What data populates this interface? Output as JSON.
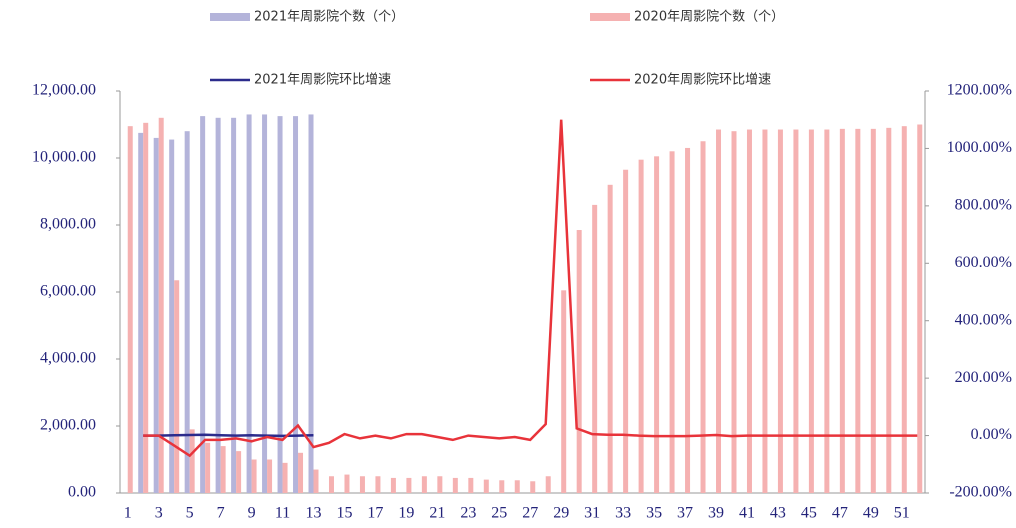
{
  "chart_data": {
    "type": "combo",
    "legend": "top",
    "categories": [
      "1",
      null,
      "3",
      null,
      "5",
      null,
      "7",
      null,
      "9",
      null,
      "11",
      null,
      "13",
      null,
      "15",
      null,
      "17",
      null,
      "19",
      null,
      "21",
      null,
      "23",
      null,
      "25",
      null,
      "27",
      null,
      "29",
      null,
      "31",
      null,
      "33",
      null,
      "35",
      null,
      "37",
      null,
      "39",
      null,
      "41",
      null,
      "43",
      null,
      "45",
      null,
      "47",
      null,
      "49",
      null,
      "51",
      null
    ],
    "ylim": [
      0,
      12000
    ],
    "yticks": [
      {
        "value": 0,
        "label": "0.00"
      },
      {
        "value": 2000,
        "label": "2,000.00"
      },
      {
        "value": 4000,
        "label": "4,000.00"
      },
      {
        "value": 6000,
        "label": "6,000.00"
      },
      {
        "value": 8000,
        "label": "8,000.00"
      },
      {
        "value": 10000,
        "label": "10,000.00"
      },
      {
        "value": 12000,
        "label": "12,000.00"
      }
    ],
    "y2lim": [
      -200,
      1200
    ],
    "y2ticks": [
      {
        "value": -200,
        "label": "-200.00%"
      },
      {
        "value": 0,
        "label": "0.00%"
      },
      {
        "value": 200,
        "label": "200.00%"
      },
      {
        "value": 400,
        "label": "400.00%"
      },
      {
        "value": 600,
        "label": "600.00%"
      },
      {
        "value": 800,
        "label": "800.00%"
      },
      {
        "value": 1000,
        "label": "1000.00%"
      },
      {
        "value": 1200,
        "label": "1200.00%"
      }
    ],
    "series": [
      {
        "name": "2021年周影院个数（个）",
        "type": "bar",
        "color": "#b4b4da",
        "values": [
          null,
          10750,
          10600,
          10550,
          10800,
          11250,
          11200,
          11200,
          11300,
          11300,
          11250,
          11250,
          11300,
          null,
          null,
          null,
          null,
          null,
          null,
          null,
          null,
          null,
          null,
          null,
          null,
          null,
          null,
          null,
          null,
          null,
          null,
          null,
          null,
          null,
          null,
          null,
          null,
          null,
          null,
          null,
          null,
          null,
          null,
          null,
          null,
          null,
          null,
          null,
          null,
          null,
          null,
          null
        ]
      },
      {
        "name": "2020年周影院个数（个）",
        "type": "bar",
        "color": "#f5b1b1",
        "values": [
          10950,
          11050,
          11200,
          6350,
          1900,
          1500,
          1400,
          1250,
          1000,
          1000,
          900,
          1200,
          700,
          500,
          550,
          500,
          500,
          450,
          450,
          500,
          500,
          450,
          450,
          400,
          380,
          380,
          350,
          500,
          6050,
          7850,
          8600,
          9200,
          9650,
          9950,
          10050,
          10200,
          10300,
          10500,
          10850,
          10800,
          10850,
          10850,
          10850,
          10850,
          10850,
          10850,
          10870,
          10870,
          10870,
          10900,
          10950,
          11000
        ]
      },
      {
        "name": "2021年周影院环比增速",
        "type": "line",
        "axis": "y2",
        "color": "#2b2b8c",
        "values": [
          null,
          0,
          0,
          1,
          2,
          3,
          1,
          0,
          1,
          0,
          -1,
          0,
          1,
          null,
          null,
          null,
          null,
          null,
          null,
          null,
          null,
          null,
          null,
          null,
          null,
          null,
          null,
          null,
          null,
          null,
          null,
          null,
          null,
          null,
          null,
          null,
          null,
          null,
          null,
          null,
          null,
          null,
          null,
          null,
          null,
          null,
          null,
          null,
          null,
          null,
          null,
          null
        ]
      },
      {
        "name": "2020年周影院环比增速",
        "type": "line",
        "axis": "y2",
        "color": "#e8333a",
        "values": [
          null,
          0,
          0,
          -35,
          -70,
          -15,
          -15,
          -10,
          -20,
          -5,
          -15,
          35,
          -40,
          -25,
          5,
          -10,
          0,
          -10,
          5,
          5,
          -5,
          -15,
          0,
          -5,
          -10,
          -5,
          -15,
          40,
          1100,
          25,
          5,
          3,
          3,
          0,
          -2,
          -2,
          -2,
          0,
          2,
          -2,
          0,
          0,
          0,
          0,
          0,
          0,
          0,
          0,
          0,
          0,
          0,
          0
        ]
      }
    ]
  }
}
